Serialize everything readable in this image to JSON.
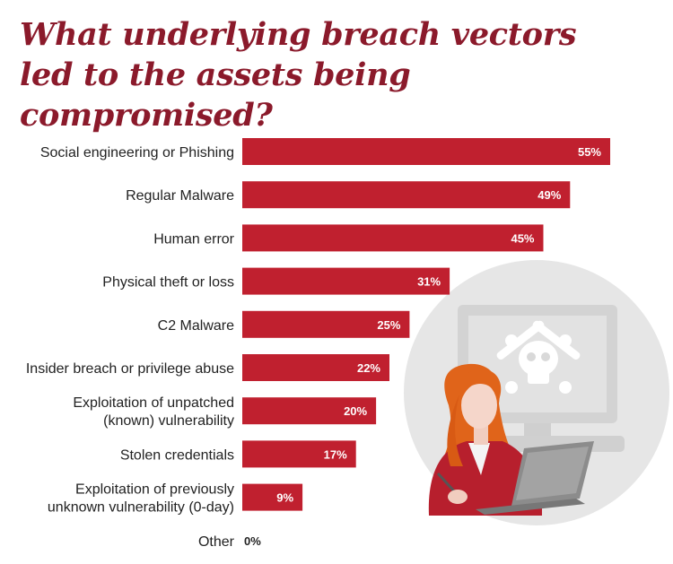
{
  "chart_data": {
    "type": "bar",
    "orientation": "horizontal",
    "title_lines": [
      "What underlying breach vectors",
      "led to the assets being compromised?"
    ],
    "categories": [
      [
        "Social engineering or Phishing"
      ],
      [
        "Regular Malware"
      ],
      [
        "Human error"
      ],
      [
        "Physical theft or loss"
      ],
      [
        "C2 Malware"
      ],
      [
        "Insider breach or privilege abuse"
      ],
      [
        "Exploitation of unpatched",
        "(known) vulnerability"
      ],
      [
        "Stolen credentials"
      ],
      [
        "Exploitation of previously",
        "unknown vulnerability (0-day)"
      ],
      [
        "Other"
      ]
    ],
    "values": [
      55,
      49,
      45,
      31,
      25,
      22,
      20,
      17,
      9,
      0
    ],
    "value_labels": [
      "55%",
      "49%",
      "45%",
      "31%",
      "25%",
      "22%",
      "20%",
      "17%",
      "9%",
      "0%"
    ],
    "xlim": [
      0,
      60
    ],
    "bar_color": "#c0202f",
    "value_label_color_inside": "#ffffff",
    "value_label_color_outside": "#222222",
    "grid": false,
    "legend": "none"
  },
  "illustration": {
    "description_icon": "person-at-laptop-with-skull-monitor"
  },
  "colors": {
    "title": "#8b1a2b",
    "circle": "#e6e6e6",
    "monitor": "#d4d4d4",
    "hair": "#e0641a",
    "jacket": "#b71f2d"
  }
}
